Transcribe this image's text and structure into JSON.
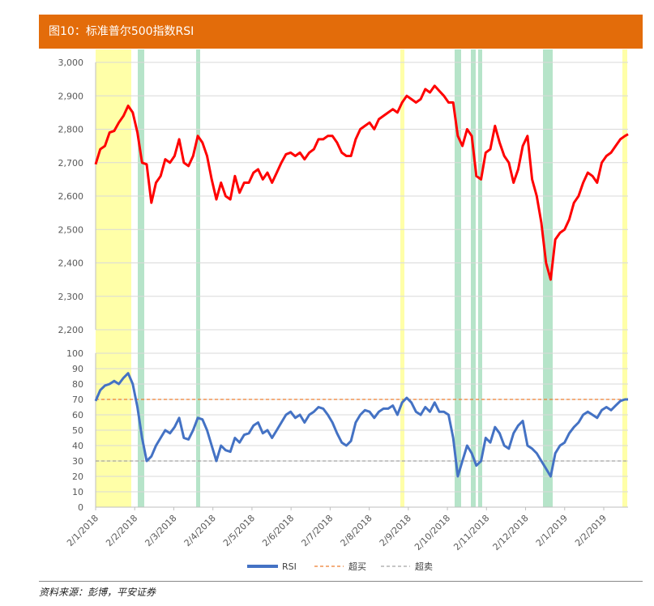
{
  "header": {
    "title": "图10：标准普尔500指数RSI"
  },
  "footer": {
    "source": "资料来源：彭博，平安证券"
  },
  "colors": {
    "price": "#ff0000",
    "rsi": "#4472c4",
    "overbought": "#ed7d31",
    "oversold": "#a5a5a5",
    "yellow_band": "#ffff99",
    "green_band": "#a9dfbf"
  },
  "chart_data": [
    {
      "type": "line",
      "title": "",
      "ylim": [
        2200,
        3000
      ],
      "yticks": [
        "2,200",
        "2,300",
        "2,400",
        "2,500",
        "2,600",
        "2,700",
        "2,800",
        "2,900",
        "3,000"
      ],
      "series": [
        {
          "values": [
            [
              0,
              2695
            ],
            [
              3,
              2740
            ],
            [
              6,
              2750
            ],
            [
              9,
              2790
            ],
            [
              12,
              2795
            ],
            [
              15,
              2820
            ],
            [
              18,
              2840
            ],
            [
              21,
              2870
            ],
            [
              24,
              2850
            ],
            [
              27,
              2790
            ],
            [
              30,
              2700
            ],
            [
              33,
              2695
            ],
            [
              36,
              2580
            ],
            [
              39,
              2640
            ],
            [
              42,
              2660
            ],
            [
              45,
              2710
            ],
            [
              48,
              2700
            ],
            [
              51,
              2720
            ],
            [
              54,
              2770
            ],
            [
              57,
              2700
            ],
            [
              60,
              2690
            ],
            [
              63,
              2720
            ],
            [
              66,
              2780
            ],
            [
              69,
              2760
            ],
            [
              72,
              2720
            ],
            [
              75,
              2650
            ],
            [
              78,
              2590
            ],
            [
              81,
              2640
            ],
            [
              84,
              2600
            ],
            [
              87,
              2590
            ],
            [
              90,
              2660
            ],
            [
              93,
              2610
            ],
            [
              96,
              2640
            ],
            [
              99,
              2640
            ],
            [
              102,
              2670
            ],
            [
              105,
              2680
            ],
            [
              108,
              2650
            ],
            [
              111,
              2670
            ],
            [
              114,
              2640
            ],
            [
              117,
              2670
            ],
            [
              120,
              2700
            ],
            [
              123,
              2725
            ],
            [
              126,
              2730
            ],
            [
              129,
              2720
            ],
            [
              132,
              2730
            ],
            [
              135,
              2710
            ],
            [
              138,
              2730
            ],
            [
              141,
              2740
            ],
            [
              144,
              2770
            ],
            [
              147,
              2770
            ],
            [
              150,
              2780
            ],
            [
              153,
              2780
            ],
            [
              156,
              2760
            ],
            [
              159,
              2730
            ],
            [
              162,
              2720
            ],
            [
              165,
              2720
            ],
            [
              168,
              2770
            ],
            [
              171,
              2800
            ],
            [
              174,
              2810
            ],
            [
              177,
              2820
            ],
            [
              180,
              2800
            ],
            [
              183,
              2830
            ],
            [
              186,
              2840
            ],
            [
              189,
              2850
            ],
            [
              192,
              2860
            ],
            [
              195,
              2850
            ],
            [
              198,
              2880
            ],
            [
              201,
              2900
            ],
            [
              204,
              2890
            ],
            [
              207,
              2880
            ],
            [
              210,
              2890
            ],
            [
              213,
              2920
            ],
            [
              216,
              2910
            ],
            [
              219,
              2930
            ],
            [
              222,
              2915
            ],
            [
              225,
              2900
            ],
            [
              228,
              2880
            ],
            [
              231,
              2880
            ],
            [
              234,
              2780
            ],
            [
              237,
              2750
            ],
            [
              240,
              2800
            ],
            [
              243,
              2780
            ],
            [
              246,
              2660
            ],
            [
              249,
              2650
            ],
            [
              252,
              2730
            ],
            [
              255,
              2740
            ],
            [
              258,
              2810
            ],
            [
              261,
              2760
            ],
            [
              264,
              2720
            ],
            [
              267,
              2700
            ],
            [
              270,
              2640
            ],
            [
              273,
              2680
            ],
            [
              276,
              2750
            ],
            [
              279,
              2780
            ],
            [
              282,
              2650
            ],
            [
              285,
              2600
            ],
            [
              288,
              2520
            ],
            [
              291,
              2400
            ],
            [
              294,
              2350
            ],
            [
              297,
              2470
            ],
            [
              300,
              2490
            ],
            [
              303,
              2500
            ],
            [
              306,
              2530
            ],
            [
              309,
              2580
            ],
            [
              312,
              2600
            ],
            [
              315,
              2640
            ],
            [
              318,
              2670
            ],
            [
              321,
              2660
            ],
            [
              324,
              2640
            ],
            [
              327,
              2700
            ],
            [
              330,
              2720
            ],
            [
              333,
              2730
            ],
            [
              336,
              2750
            ],
            [
              339,
              2770
            ],
            [
              342,
              2780
            ],
            [
              344,
              2785
            ]
          ]
        }
      ]
    },
    {
      "type": "line",
      "title": "",
      "ylim": [
        0,
        100
      ],
      "yticks": [
        "0",
        "10",
        "20",
        "30",
        "40",
        "50",
        "60",
        "70",
        "80",
        "90",
        "100"
      ],
      "x_tick_labels": [
        "2/1/2018",
        "2/2/2018",
        "2/3/2018",
        "2/4/2018",
        "2/5/2018",
        "2/6/2018",
        "2/7/2018",
        "2/8/2018",
        "2/9/2018",
        "2/10/2018",
        "2/11/2018",
        "2/12/2018",
        "2/1/2019",
        "2/2/2019"
      ],
      "legend": [
        "RSI",
        "超买",
        "超卖"
      ],
      "overbought": 70,
      "oversold": 30,
      "series": [
        {
          "name": "RSI",
          "values": [
            [
              0,
              69
            ],
            [
              3,
              76
            ],
            [
              6,
              79
            ],
            [
              9,
              80
            ],
            [
              12,
              82
            ],
            [
              15,
              80
            ],
            [
              18,
              84
            ],
            [
              21,
              87
            ],
            [
              24,
              80
            ],
            [
              27,
              65
            ],
            [
              30,
              45
            ],
            [
              33,
              30
            ],
            [
              36,
              33
            ],
            [
              39,
              40
            ],
            [
              42,
              45
            ],
            [
              45,
              50
            ],
            [
              48,
              48
            ],
            [
              51,
              52
            ],
            [
              54,
              58
            ],
            [
              57,
              45
            ],
            [
              60,
              44
            ],
            [
              63,
              50
            ],
            [
              66,
              58
            ],
            [
              69,
              57
            ],
            [
              72,
              50
            ],
            [
              75,
              40
            ],
            [
              78,
              30
            ],
            [
              81,
              40
            ],
            [
              84,
              37
            ],
            [
              87,
              36
            ],
            [
              90,
              45
            ],
            [
              93,
              42
            ],
            [
              96,
              47
            ],
            [
              99,
              48
            ],
            [
              102,
              53
            ],
            [
              105,
              55
            ],
            [
              108,
              48
            ],
            [
              111,
              50
            ],
            [
              114,
              45
            ],
            [
              117,
              50
            ],
            [
              120,
              55
            ],
            [
              123,
              60
            ],
            [
              126,
              62
            ],
            [
              129,
              58
            ],
            [
              132,
              60
            ],
            [
              135,
              55
            ],
            [
              138,
              60
            ],
            [
              141,
              62
            ],
            [
              144,
              65
            ],
            [
              147,
              64
            ],
            [
              150,
              60
            ],
            [
              153,
              55
            ],
            [
              156,
              48
            ],
            [
              159,
              42
            ],
            [
              162,
              40
            ],
            [
              165,
              43
            ],
            [
              168,
              55
            ],
            [
              171,
              60
            ],
            [
              174,
              63
            ],
            [
              177,
              62
            ],
            [
              180,
              58
            ],
            [
              183,
              62
            ],
            [
              186,
              64
            ],
            [
              189,
              64
            ],
            [
              192,
              66
            ],
            [
              195,
              60
            ],
            [
              198,
              68
            ],
            [
              201,
              71
            ],
            [
              204,
              68
            ],
            [
              207,
              62
            ],
            [
              210,
              60
            ],
            [
              213,
              65
            ],
            [
              216,
              62
            ],
            [
              219,
              68
            ],
            [
              222,
              62
            ],
            [
              225,
              62
            ],
            [
              228,
              60
            ],
            [
              231,
              45
            ],
            [
              234,
              20
            ],
            [
              237,
              30
            ],
            [
              240,
              40
            ],
            [
              243,
              35
            ],
            [
              246,
              27
            ],
            [
              249,
              30
            ],
            [
              252,
              45
            ],
            [
              255,
              42
            ],
            [
              258,
              52
            ],
            [
              261,
              48
            ],
            [
              264,
              40
            ],
            [
              267,
              38
            ],
            [
              270,
              48
            ],
            [
              273,
              53
            ],
            [
              276,
              56
            ],
            [
              279,
              40
            ],
            [
              282,
              38
            ],
            [
              285,
              35
            ],
            [
              288,
              30
            ],
            [
              291,
              25
            ],
            [
              294,
              20
            ],
            [
              297,
              35
            ],
            [
              300,
              40
            ],
            [
              303,
              42
            ],
            [
              306,
              48
            ],
            [
              309,
              52
            ],
            [
              312,
              55
            ],
            [
              315,
              60
            ],
            [
              318,
              62
            ],
            [
              321,
              60
            ],
            [
              324,
              58
            ],
            [
              327,
              63
            ],
            [
              330,
              65
            ],
            [
              333,
              63
            ],
            [
              336,
              66
            ],
            [
              339,
              69
            ],
            [
              342,
              70
            ],
            [
              344,
              70
            ]
          ]
        }
      ]
    }
  ]
}
